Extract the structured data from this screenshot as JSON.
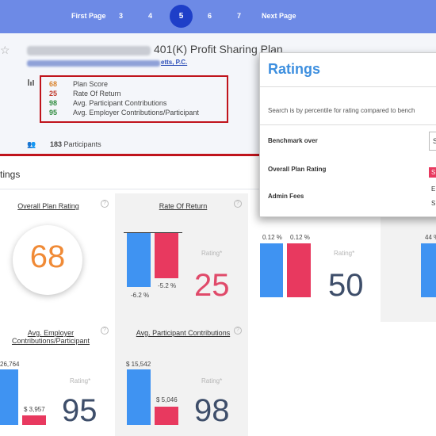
{
  "pagination": {
    "first": "First Page",
    "pages": [
      "3",
      "4",
      "5",
      "6",
      "7"
    ],
    "active": "5",
    "next": "Next Page"
  },
  "plan": {
    "title": "401(K) Profit Sharing Plan",
    "sponsor_suffix": "etts, P.C.",
    "scores": [
      {
        "num": "68",
        "label": "Plan Score",
        "color": "#d9822b"
      },
      {
        "num": "25",
        "label": "Rate Of Return",
        "color": "#c0392b"
      },
      {
        "num": "98",
        "label": "Avg. Participant Contributions",
        "color": "#2e8b3d"
      },
      {
        "num": "95",
        "label": "Avg. Employer Contributions/Participant",
        "color": "#2e8b3d"
      }
    ],
    "participants_count": "183",
    "participants_label": "Participants"
  },
  "ratings": {
    "title": "tings",
    "rating_label": "Rating*",
    "help": "?",
    "overall": {
      "title": "Overall Plan Rating",
      "score": "68"
    },
    "return": {
      "title": "Rate Of Return",
      "blue_value": "-6.2 %",
      "pink_value": "-5.2 %",
      "score": "25",
      "blue": -6.2,
      "pink": -5.2
    },
    "fees": {
      "blue_value": "0.12 %",
      "pink_value": "0.12 %",
      "score": "50",
      "blue": 0.12,
      "pink": 0.12
    },
    "fourth": {
      "partial_value": "44 %"
    },
    "employer": {
      "title_line1": "Avg. Employer",
      "title_line2": "Contributions/Participant",
      "blue_value": "26,764",
      "pink_value": "$ 3,957",
      "score": "95"
    },
    "participant": {
      "title": "Avg. Participant Contributions",
      "blue_value": "$ 15,542",
      "pink_value": "$ 5,046",
      "score": "98",
      "blue": 15542,
      "pink": 5046
    }
  },
  "modal": {
    "title": "Ratings",
    "description": "Search is by percentile for rating compared to bench",
    "benchmark_label": "Benchmark over",
    "overall_label": "Overall Plan Rating",
    "admin_label": "Admin Fees",
    "select_value": "S",
    "options": [
      "S",
      "E",
      "S"
    ]
  },
  "colors": {
    "blue": "#3f93f2",
    "pink": "#e8395f",
    "pager": "#6d8ae6",
    "active_page": "#1e3fc8",
    "highlight_border": "#c0141c"
  }
}
